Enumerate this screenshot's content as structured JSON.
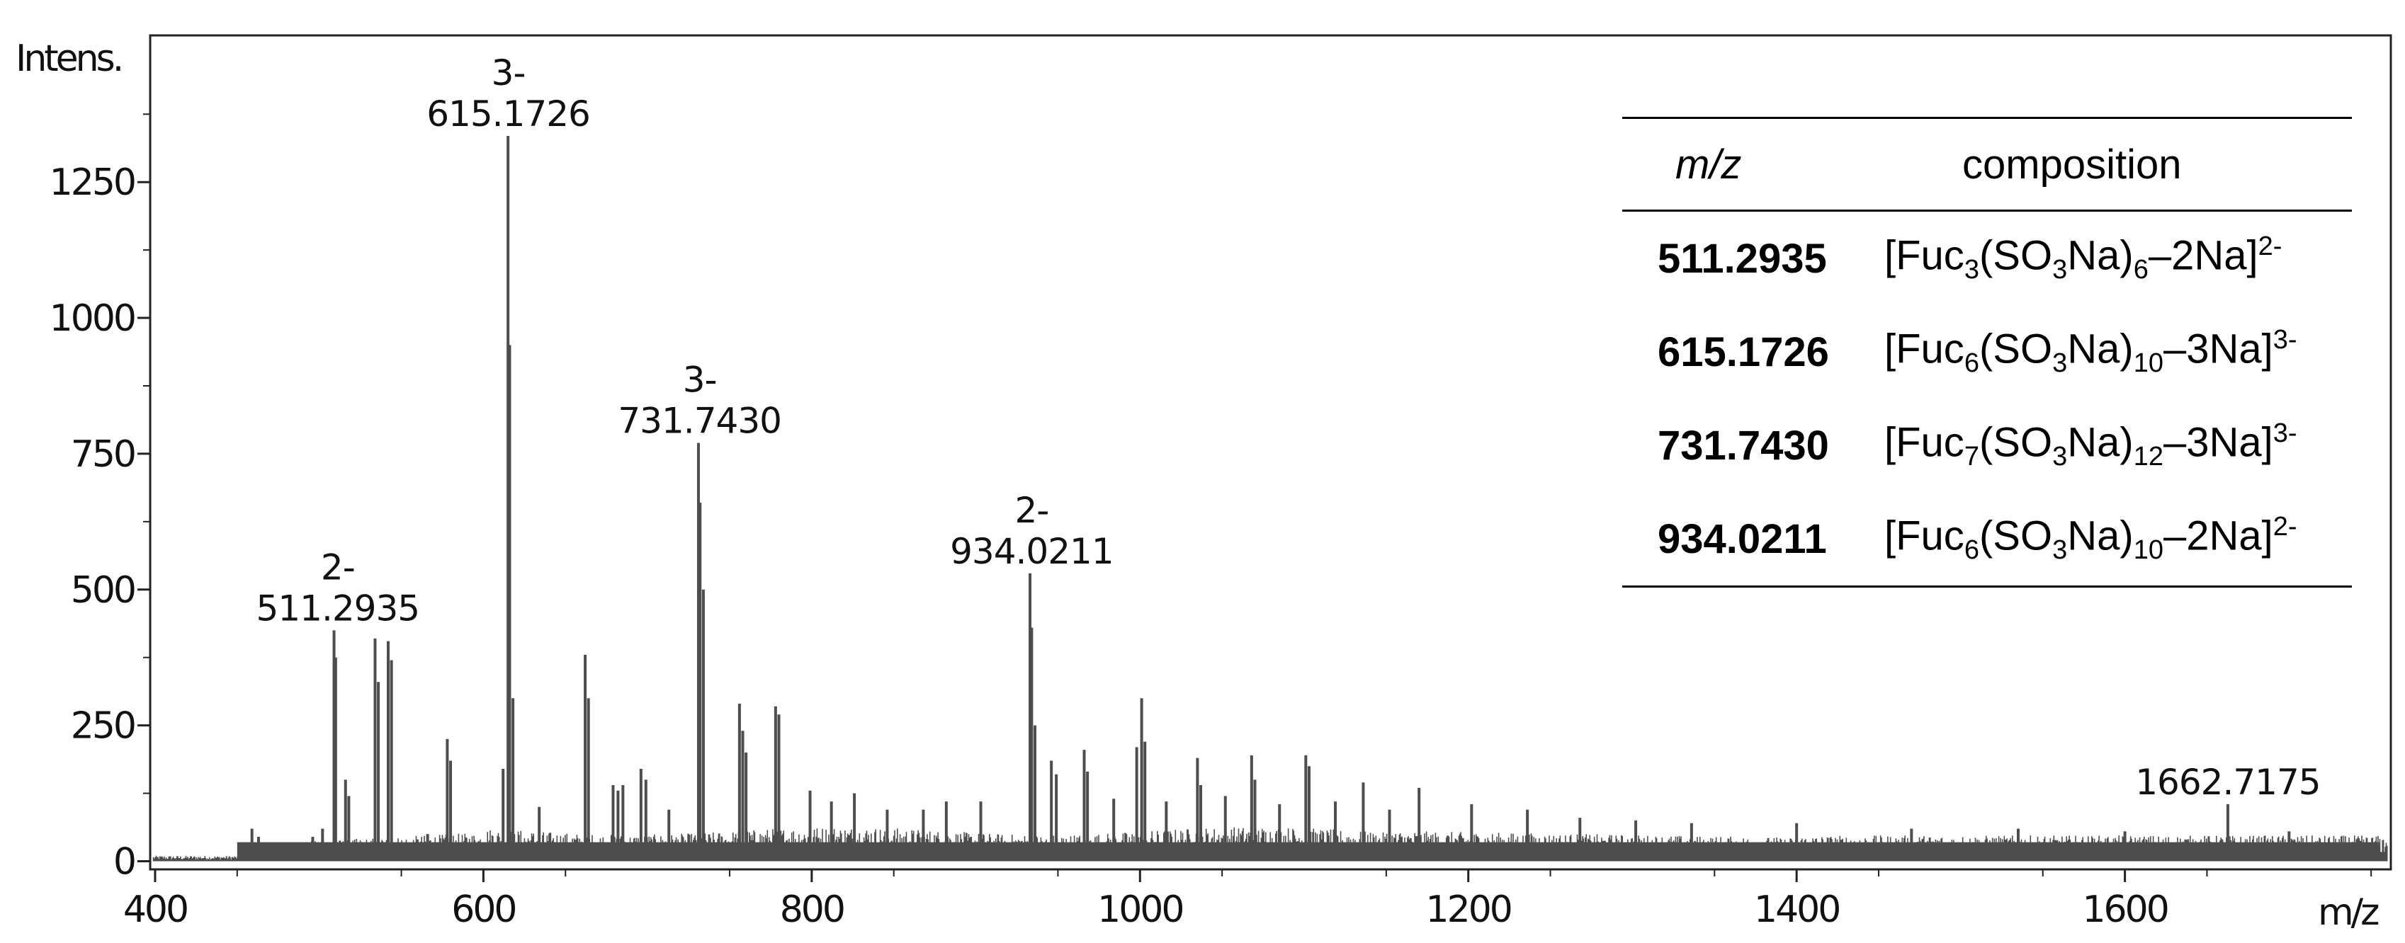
{
  "chart_data": {
    "type": "line",
    "title": "",
    "xlabel": "m/z",
    "ylabel": "Intens.",
    "xlim": [
      397,
      1762
    ],
    "ylim": [
      -15,
      1520
    ],
    "x_ticks": [
      400,
      600,
      800,
      1000,
      1200,
      1400,
      1600
    ],
    "y_ticks": [
      0,
      250,
      500,
      750,
      1000,
      1250
    ],
    "grid": false,
    "series_color": "#4d4d4d",
    "peaks": [
      {
        "x": 459,
        "y": 60
      },
      {
        "x": 463,
        "y": 45
      },
      {
        "x": 496,
        "y": 45
      },
      {
        "x": 502,
        "y": 60
      },
      {
        "x": 509,
        "y": 425
      },
      {
        "x": 510,
        "y": 375
      },
      {
        "x": 516,
        "y": 150
      },
      {
        "x": 518,
        "y": 120
      },
      {
        "x": 534,
        "y": 410
      },
      {
        "x": 536,
        "y": 330
      },
      {
        "x": 542,
        "y": 405
      },
      {
        "x": 544,
        "y": 370
      },
      {
        "x": 566,
        "y": 50
      },
      {
        "x": 578,
        "y": 225
      },
      {
        "x": 580,
        "y": 185
      },
      {
        "x": 612,
        "y": 170
      },
      {
        "x": 615,
        "y": 1335
      },
      {
        "x": 616,
        "y": 950
      },
      {
        "x": 618,
        "y": 300
      },
      {
        "x": 634,
        "y": 100
      },
      {
        "x": 662,
        "y": 380
      },
      {
        "x": 664,
        "y": 300
      },
      {
        "x": 679,
        "y": 140
      },
      {
        "x": 682,
        "y": 130
      },
      {
        "x": 685,
        "y": 140
      },
      {
        "x": 696,
        "y": 170
      },
      {
        "x": 699,
        "y": 150
      },
      {
        "x": 713,
        "y": 95
      },
      {
        "x": 731,
        "y": 770
      },
      {
        "x": 732,
        "y": 660
      },
      {
        "x": 734,
        "y": 500
      },
      {
        "x": 756,
        "y": 290
      },
      {
        "x": 758,
        "y": 240
      },
      {
        "x": 760,
        "y": 200
      },
      {
        "x": 778,
        "y": 285
      },
      {
        "x": 780,
        "y": 270
      },
      {
        "x": 799,
        "y": 130
      },
      {
        "x": 812,
        "y": 110
      },
      {
        "x": 826,
        "y": 125
      },
      {
        "x": 846,
        "y": 95
      },
      {
        "x": 868,
        "y": 95
      },
      {
        "x": 882,
        "y": 110
      },
      {
        "x": 903,
        "y": 110
      },
      {
        "x": 933,
        "y": 530
      },
      {
        "x": 934,
        "y": 430
      },
      {
        "x": 936,
        "y": 250
      },
      {
        "x": 946,
        "y": 185
      },
      {
        "x": 949,
        "y": 160
      },
      {
        "x": 966,
        "y": 205
      },
      {
        "x": 968,
        "y": 165
      },
      {
        "x": 984,
        "y": 115
      },
      {
        "x": 998,
        "y": 210
      },
      {
        "x": 1001,
        "y": 300
      },
      {
        "x": 1003,
        "y": 220
      },
      {
        "x": 1016,
        "y": 110
      },
      {
        "x": 1035,
        "y": 190
      },
      {
        "x": 1037,
        "y": 140
      },
      {
        "x": 1052,
        "y": 120
      },
      {
        "x": 1068,
        "y": 195
      },
      {
        "x": 1070,
        "y": 150
      },
      {
        "x": 1085,
        "y": 105
      },
      {
        "x": 1101,
        "y": 195
      },
      {
        "x": 1103,
        "y": 175
      },
      {
        "x": 1119,
        "y": 110
      },
      {
        "x": 1136,
        "y": 145
      },
      {
        "x": 1152,
        "y": 95
      },
      {
        "x": 1170,
        "y": 135
      },
      {
        "x": 1202,
        "y": 105
      },
      {
        "x": 1236,
        "y": 95
      },
      {
        "x": 1268,
        "y": 80
      },
      {
        "x": 1302,
        "y": 75
      },
      {
        "x": 1336,
        "y": 70
      },
      {
        "x": 1400,
        "y": 70
      },
      {
        "x": 1470,
        "y": 60
      },
      {
        "x": 1535,
        "y": 60
      },
      {
        "x": 1600,
        "y": 55
      },
      {
        "x": 1662.7,
        "y": 105
      },
      {
        "x": 1700,
        "y": 55
      }
    ],
    "annotations": [
      {
        "charge": "3-",
        "mz": "615.1726",
        "x": 615.1726,
        "y": 1335
      },
      {
        "charge": "3-",
        "mz": "731.7430",
        "x": 731.743,
        "y": 770
      },
      {
        "charge": "2-",
        "mz": "511.2935",
        "x": 511.2935,
        "y": 425
      },
      {
        "charge": "2-",
        "mz": "934.0211",
        "x": 934.0211,
        "y": 530
      },
      {
        "charge": "",
        "mz": "1662.7175",
        "x": 1662.7175,
        "y": 105
      }
    ]
  },
  "table": {
    "col_mz": "m/z",
    "col_composition": "composition",
    "rows": [
      {
        "mz": "511.2935",
        "fuc": "3",
        "so3": "3",
        "n": "6",
        "loss": "–2Na",
        "charge": "2-"
      },
      {
        "mz": "615.1726",
        "fuc": "6",
        "so3": "3",
        "n": "10",
        "loss": "–3Na",
        "charge": "3-"
      },
      {
        "mz": "731.7430",
        "fuc": "7",
        "so3": "3",
        "n": "12",
        "loss": "–3Na",
        "charge": "3-"
      },
      {
        "mz": "934.0211",
        "fuc": "6",
        "so3": "3",
        "n": "10",
        "loss": "–2Na",
        "charge": "2-"
      }
    ]
  }
}
